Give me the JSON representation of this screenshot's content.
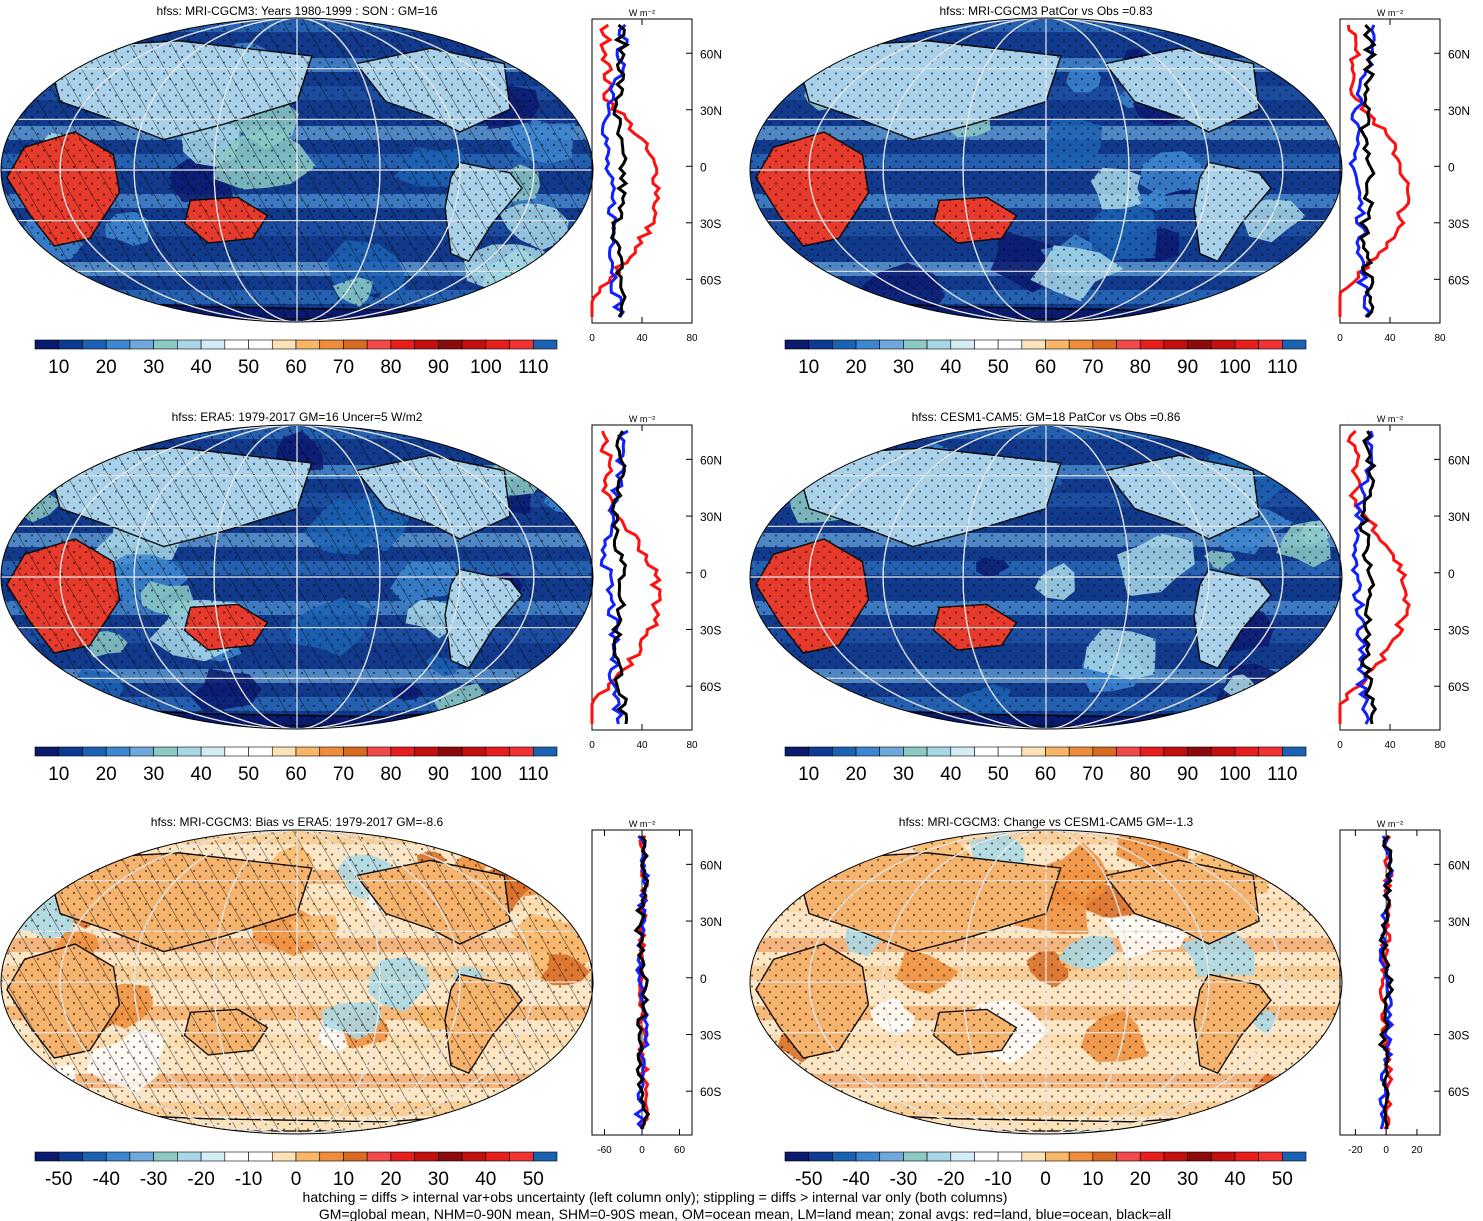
{
  "units_label": "W m⁻²",
  "lat_labels": [
    "60N",
    "30N",
    "0",
    "30S",
    "60S"
  ],
  "lat_values": [
    60,
    30,
    0,
    -30,
    -60
  ],
  "colorbar_abs": {
    "labels": [
      "10",
      "20",
      "30",
      "40",
      "50",
      "60",
      "70",
      "80",
      "90",
      "100",
      "110"
    ],
    "colors": [
      "#0a1a6e",
      "#0c3a93",
      "#1b62b3",
      "#3d86d0",
      "#6fa9dc",
      "#8cc9c4",
      "#a8d8e8",
      "#d4ecf5",
      "#ffffff",
      "#ffffff",
      "#fde2b8",
      "#f8b768",
      "#ee8d3b",
      "#d86a22",
      "#f24a4a",
      "#e61e1e",
      "#c40f0f",
      "#8c0a0a",
      "#c40f0f",
      "#e61e1e",
      "#f03232",
      "#1b62b3"
    ]
  },
  "colorbar_diff": {
    "labels": [
      "-50",
      "-40",
      "-30",
      "-20",
      "-10",
      "0",
      "10",
      "20",
      "30",
      "40",
      "50"
    ],
    "colors": [
      "#0a1a6e",
      "#0c3a93",
      "#1b62b3",
      "#3d86d0",
      "#6fa9dc",
      "#8cc9c4",
      "#a8d8e8",
      "#d4ecf5",
      "#ffffff",
      "#ffffff",
      "#fde2b8",
      "#f8b768",
      "#ee8d3b",
      "#d86a22",
      "#f24a4a",
      "#e61e1e",
      "#c40f0f",
      "#8c0a0a",
      "#c40f0f",
      "#e61e1e",
      "#f03232",
      "#1b62b3"
    ]
  },
  "panels": [
    {
      "id": "mri-son",
      "title": "hfss: MRI-CGCM3: Years 1980-1999 : SON : GM=16",
      "kind": "abs",
      "hatch": true,
      "stipple": true,
      "profile_ticks": [
        "0",
        "40",
        "80"
      ],
      "profile_xlim": [
        0,
        80
      ],
      "profile_tickvals": [
        0,
        40,
        80
      ]
    },
    {
      "id": "mri-patcor",
      "title": "hfss: MRI-CGCM3 PatCor vs Obs =0.83",
      "kind": "abs",
      "hatch": false,
      "stipple": true,
      "profile_ticks": [
        "0",
        "40",
        "80"
      ],
      "profile_xlim": [
        0,
        80
      ],
      "profile_tickvals": [
        0,
        40,
        80
      ]
    },
    {
      "id": "era5",
      "title": "hfss: ERA5: 1979-2017 GM=16 Uncer=5 W/m2",
      "kind": "abs",
      "hatch": true,
      "stipple": true,
      "profile_ticks": [
        "0",
        "40",
        "80"
      ],
      "profile_xlim": [
        0,
        80
      ],
      "profile_tickvals": [
        0,
        40,
        80
      ]
    },
    {
      "id": "cesm",
      "title": "hfss: CESM1-CAM5: GM=18 PatCor vs Obs =0.86",
      "kind": "abs",
      "hatch": false,
      "stipple": true,
      "profile_ticks": [
        "0",
        "40",
        "80"
      ],
      "profile_xlim": [
        0,
        80
      ],
      "profile_tickvals": [
        0,
        40,
        80
      ]
    },
    {
      "id": "bias",
      "title": "hfss: MRI-CGCM3: Bias vs ERA5: 1979-2017  GM=-8.6",
      "kind": "diff",
      "hatch": true,
      "stipple": true,
      "profile_ticks": [
        "-60",
        "0",
        "60"
      ],
      "profile_xlim": [
        -80,
        80
      ],
      "profile_tickvals": [
        -60,
        0,
        60
      ]
    },
    {
      "id": "change",
      "title": "hfss: MRI-CGCM3: Change vs CESM1-CAM5 GM=-1.3",
      "kind": "diff",
      "hatch": false,
      "stipple": true,
      "profile_ticks": [
        "-20",
        "0",
        "20"
      ],
      "profile_xlim": [
        -30,
        35
      ],
      "profile_tickvals": [
        -20,
        0,
        20
      ]
    }
  ],
  "footer": {
    "line1": "hatching = diffs > internal var+obs uncertainty (left column only); stippling = diffs > internal var only (both columns)",
    "line2": "GM=global mean, NHM=0-90N mean, SHM=0-90S mean, OM=ocean mean, LM=land mean; zonal avgs: red=land, blue=ocean, black=all"
  }
}
